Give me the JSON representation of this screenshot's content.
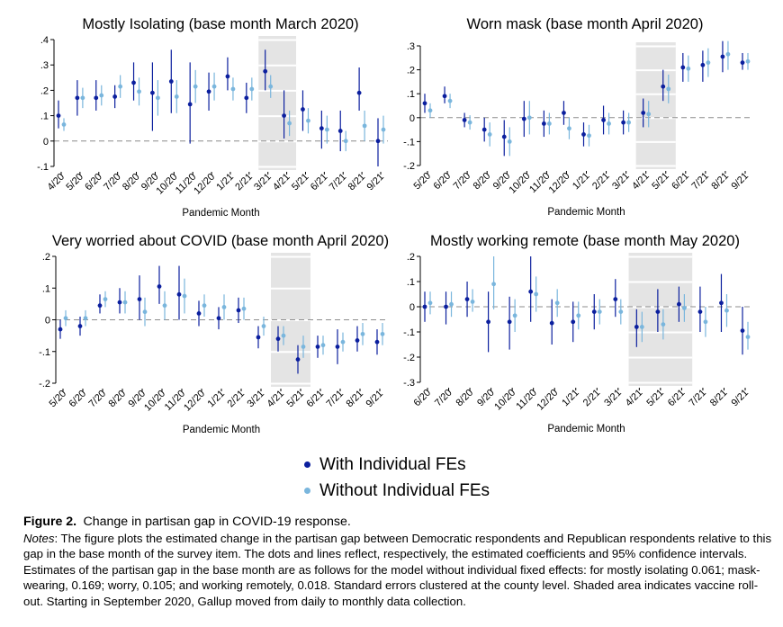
{
  "colors": {
    "with_fe": "#0b1f9e",
    "without_fe": "#7ab6dd",
    "shade": "#e4e4e4",
    "zero_line": "#8c8c8c"
  },
  "legend": {
    "with_label": "With Individual FEs",
    "without_label": "Without Individual FEs"
  },
  "caption": {
    "figure_label": "Figure 2.",
    "title": "Change in partisan gap in COVID-19 response.",
    "notes_label": "Notes",
    "notes_text": ": The figure plots the estimated change in the partisan gap between Democratic respondents and Republican respondents relative to this gap in the base month of the survey item. The dots and lines reflect, respectively, the estimated coefficients and 95% confidence intervals. Estimates of the partisan gap in the base month are as follows for the model without individual fixed effects: for mostly isolating 0.061; mask-wearing, 0.169; worry, 0.105; and working remotely, 0.018. Standard errors clustered at the county level. Shaded area indicates vaccine roll-out. Starting in September 2020, Gallup moved from daily to monthly data collection."
  },
  "chart_data": [
    {
      "type": "scatter",
      "title": "Mostly Isolating (base month March 2020)",
      "xlabel": "Pandemic Month",
      "ylim": [
        -0.1,
        0.4
      ],
      "yticks": [
        -0.1,
        0,
        0.1,
        0.2,
        0.3,
        0.4
      ],
      "yticklabels": [
        "-.1",
        "0",
        ".1",
        ".2",
        ".3",
        ".4"
      ],
      "categories": [
        "4/20",
        "5/20",
        "6/20",
        "7/20",
        "8/20",
        "9/20",
        "10/20",
        "11/20",
        "12/20",
        "1/21",
        "2/21",
        "3/21",
        "4/21",
        "5/21",
        "6/21",
        "7/21",
        "8/21",
        "9/21"
      ],
      "shade_range": [
        "3/21",
        "4/21"
      ],
      "series": [
        {
          "name": "With Individual FEs",
          "values": [
            0.1,
            0.17,
            0.17,
            0.175,
            0.23,
            0.19,
            0.235,
            0.145,
            0.195,
            0.255,
            0.17,
            0.275,
            0.1,
            0.125,
            0.05,
            0.04,
            0.19,
            0.0
          ],
          "lo": [
            0.05,
            0.1,
            0.12,
            0.13,
            0.16,
            0.04,
            0.11,
            -0.01,
            0.12,
            0.2,
            0.11,
            0.2,
            0.01,
            0.04,
            -0.03,
            -0.04,
            0.12,
            -0.1
          ],
          "hi": [
            0.16,
            0.24,
            0.24,
            0.22,
            0.31,
            0.31,
            0.36,
            0.31,
            0.27,
            0.33,
            0.23,
            0.36,
            0.2,
            0.2,
            0.12,
            0.12,
            0.29,
            0.09
          ]
        },
        {
          "name": "Without Individual FEs",
          "values": [
            0.065,
            0.17,
            0.18,
            0.215,
            0.195,
            0.17,
            0.175,
            0.215,
            0.215,
            0.205,
            0.205,
            0.215,
            0.07,
            0.08,
            0.045,
            0.0,
            0.06,
            0.045
          ],
          "lo": [
            0.04,
            0.13,
            0.14,
            0.17,
            0.14,
            0.1,
            0.11,
            0.15,
            0.16,
            0.16,
            0.16,
            0.17,
            0.02,
            0.03,
            -0.01,
            -0.04,
            0.0,
            -0.01
          ],
          "hi": [
            0.09,
            0.21,
            0.22,
            0.26,
            0.25,
            0.24,
            0.24,
            0.28,
            0.27,
            0.25,
            0.25,
            0.26,
            0.12,
            0.13,
            0.1,
            0.04,
            0.12,
            0.1
          ]
        }
      ]
    },
    {
      "type": "scatter",
      "title": "Worn mask (base month April 2020)",
      "xlabel": "Pandemic Month",
      "ylim": [
        -0.2,
        0.3
      ],
      "yticks": [
        -0.2,
        -0.1,
        0,
        0.1,
        0.2,
        0.3
      ],
      "yticklabels": [
        "-.2",
        "-.1",
        "0",
        ".1",
        ".2",
        ".3"
      ],
      "categories": [
        "5/20",
        "6/20",
        "7/20",
        "8/20",
        "9/20",
        "10/20",
        "11/20",
        "12/20",
        "1/21",
        "2/21",
        "3/21",
        "4/21",
        "5/21",
        "6/21",
        "7/21",
        "8/21",
        "9/21"
      ],
      "shade_range": [
        "4/21",
        "5/21"
      ],
      "series": [
        {
          "name": "With Individual FEs",
          "values": [
            0.06,
            0.09,
            -0.01,
            -0.05,
            -0.08,
            -0.005,
            -0.025,
            0.02,
            -0.07,
            -0.01,
            -0.02,
            0.02,
            0.13,
            0.21,
            0.22,
            0.255,
            0.23
          ],
          "lo": [
            0.02,
            0.06,
            -0.04,
            -0.1,
            -0.16,
            -0.08,
            -0.08,
            -0.03,
            -0.12,
            -0.07,
            -0.07,
            -0.04,
            0.07,
            0.15,
            0.15,
            0.19,
            0.2
          ],
          "hi": [
            0.1,
            0.13,
            0.02,
            0.0,
            -0.01,
            0.07,
            0.03,
            0.07,
            -0.02,
            0.05,
            0.03,
            0.08,
            0.2,
            0.27,
            0.28,
            0.32,
            0.27
          ]
        },
        {
          "name": "Without Individual FEs",
          "values": [
            0.03,
            0.07,
            -0.02,
            -0.07,
            -0.1,
            0.0,
            -0.025,
            -0.045,
            -0.075,
            -0.025,
            -0.02,
            0.015,
            0.12,
            0.205,
            0.23,
            0.265,
            0.235
          ],
          "lo": [
            0.0,
            0.04,
            -0.05,
            -0.12,
            -0.16,
            -0.07,
            -0.07,
            -0.09,
            -0.12,
            -0.07,
            -0.06,
            -0.04,
            0.06,
            0.15,
            0.17,
            0.2,
            0.2
          ],
          "hi": [
            0.06,
            0.1,
            0.01,
            -0.02,
            -0.04,
            0.07,
            0.02,
            0.0,
            -0.03,
            0.02,
            0.02,
            0.07,
            0.18,
            0.26,
            0.29,
            0.32,
            0.27
          ]
        }
      ]
    },
    {
      "type": "scatter",
      "title": "Very worried about COVID (base month April 2020)",
      "xlabel": "Pandemic Month",
      "ylim": [
        -0.2,
        0.2
      ],
      "yticks": [
        -0.2,
        -0.1,
        0,
        0.1,
        0.2
      ],
      "yticklabels": [
        "-.2",
        "-.1",
        "0",
        ".1",
        ".2"
      ],
      "categories": [
        "5/20",
        "6/20",
        "7/20",
        "8/20",
        "9/20",
        "10/20",
        "11/20",
        "12/20",
        "1/21",
        "2/21",
        "3/21",
        "4/21",
        "5/21",
        "6/21",
        "7/21",
        "8/21",
        "9/21"
      ],
      "shade_range": [
        "4/21",
        "5/21"
      ],
      "series": [
        {
          "name": "With Individual FEs",
          "values": [
            -0.03,
            -0.02,
            0.045,
            0.055,
            0.065,
            0.105,
            0.08,
            0.02,
            0.005,
            0.03,
            -0.055,
            -0.06,
            -0.125,
            -0.085,
            -0.085,
            -0.065,
            -0.07
          ],
          "lo": [
            -0.06,
            -0.05,
            0.02,
            0.02,
            0.0,
            0.05,
            0.0,
            -0.02,
            -0.03,
            -0.01,
            -0.09,
            -0.1,
            -0.17,
            -0.12,
            -0.14,
            -0.1,
            -0.11
          ],
          "hi": [
            0.0,
            0.01,
            0.08,
            0.1,
            0.14,
            0.17,
            0.17,
            0.06,
            0.04,
            0.07,
            -0.02,
            -0.02,
            -0.08,
            -0.05,
            -0.03,
            -0.02,
            -0.03
          ]
        },
        {
          "name": "Without Individual FEs",
          "values": [
            0.005,
            0.005,
            0.065,
            0.055,
            0.025,
            0.045,
            0.075,
            0.045,
            0.04,
            0.035,
            -0.02,
            -0.05,
            -0.085,
            -0.08,
            -0.07,
            -0.045,
            -0.045
          ],
          "lo": [
            -0.02,
            -0.02,
            0.04,
            0.02,
            -0.02,
            0.0,
            0.02,
            0.01,
            0.0,
            0.0,
            -0.05,
            -0.08,
            -0.12,
            -0.11,
            -0.1,
            -0.08,
            -0.08
          ],
          "hi": [
            0.03,
            0.03,
            0.09,
            0.09,
            0.07,
            0.09,
            0.13,
            0.08,
            0.08,
            0.07,
            0.01,
            -0.02,
            -0.05,
            -0.05,
            -0.04,
            -0.01,
            -0.01
          ]
        }
      ]
    },
    {
      "type": "scatter",
      "title": "Mostly working remote (base month May 2020)",
      "xlabel": "Pandemic Month",
      "ylim": [
        -0.3,
        0.2
      ],
      "yticks": [
        -0.3,
        -0.2,
        -0.1,
        0,
        0.1,
        0.2
      ],
      "yticklabels": [
        "-.3",
        "-.2",
        "-.1",
        "0",
        ".1",
        ".2"
      ],
      "categories": [
        "6/20",
        "7/20",
        "8/20",
        "9/20",
        "10/20",
        "11/20",
        "12/20",
        "1/21",
        "2/21",
        "3/21",
        "4/21",
        "5/21",
        "6/21",
        "7/21",
        "8/21",
        "9/21"
      ],
      "shade_range": [
        "4/21",
        "6/21"
      ],
      "series": [
        {
          "name": "With Individual FEs",
          "values": [
            0.0,
            0.0,
            0.03,
            -0.06,
            -0.06,
            0.06,
            -0.065,
            -0.06,
            -0.02,
            0.03,
            -0.08,
            -0.02,
            0.01,
            -0.02,
            0.015,
            -0.095
          ],
          "lo": [
            -0.06,
            -0.07,
            -0.04,
            -0.18,
            -0.17,
            -0.06,
            -0.15,
            -0.14,
            -0.09,
            -0.04,
            -0.16,
            -0.1,
            -0.06,
            -0.1,
            -0.1,
            -0.19
          ],
          "hi": [
            0.06,
            0.06,
            0.1,
            0.06,
            0.04,
            0.2,
            0.03,
            0.02,
            0.05,
            0.11,
            -0.01,
            0.07,
            0.08,
            0.08,
            0.13,
            0.0
          ]
        },
        {
          "name": "Without Individual FEs",
          "values": [
            0.015,
            0.01,
            0.02,
            0.09,
            -0.035,
            0.05,
            0.015,
            -0.035,
            -0.02,
            -0.02,
            -0.08,
            -0.07,
            -0.005,
            -0.06,
            -0.015,
            -0.12
          ],
          "lo": [
            -0.03,
            -0.04,
            -0.02,
            -0.01,
            -0.1,
            -0.02,
            -0.04,
            -0.09,
            -0.07,
            -0.07,
            -0.14,
            -0.13,
            -0.06,
            -0.12,
            -0.08,
            -0.17
          ],
          "hi": [
            0.06,
            0.06,
            0.07,
            0.2,
            0.03,
            0.12,
            0.07,
            0.02,
            0.03,
            0.03,
            -0.02,
            -0.01,
            0.05,
            0.0,
            0.05,
            -0.06
          ]
        }
      ]
    }
  ]
}
